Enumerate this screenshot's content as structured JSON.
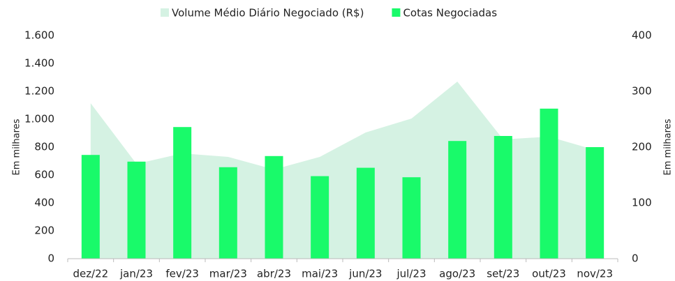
{
  "chart_data": {
    "type": "bar_area",
    "categories": [
      "dez/22",
      "jan/23",
      "fev/23",
      "mar/23",
      "abr/23",
      "mai/23",
      "jun/23",
      "jul/23",
      "ago/23",
      "set/23",
      "out/23",
      "nov/23"
    ],
    "series": [
      {
        "name": "Volume Médio Diário Negociado (R$)",
        "color": "#d5f2e3",
        "kind": "area",
        "values": [
          1115,
          680,
          755,
          730,
          640,
          730,
          905,
          1005,
          1270,
          855,
          875,
          780
        ]
      },
      {
        "name": "Cotas Negociadas",
        "color": "#19fa6a",
        "kind": "bar",
        "axis": "y2",
        "values": [
          186,
          174,
          236,
          164,
          184,
          148,
          163,
          146,
          211,
          220,
          269,
          200
        ]
      }
    ],
    "ylim": [
      0,
      1600
    ],
    "yticks": [
      0,
      200,
      400,
      600,
      800,
      {
        "value": 1000,
        "label": "1.000"
      },
      {
        "value": 1200,
        "label": "1.200"
      },
      {
        "value": 1400,
        "label": "1.400"
      },
      {
        "value": 1600,
        "label": "1.600"
      }
    ],
    "y2lim": [
      0,
      400
    ],
    "y2ticks": [
      0,
      100,
      200,
      300,
      400
    ],
    "ylabel": "Em milhares",
    "y2label": "Em milhares",
    "legend": "top"
  }
}
